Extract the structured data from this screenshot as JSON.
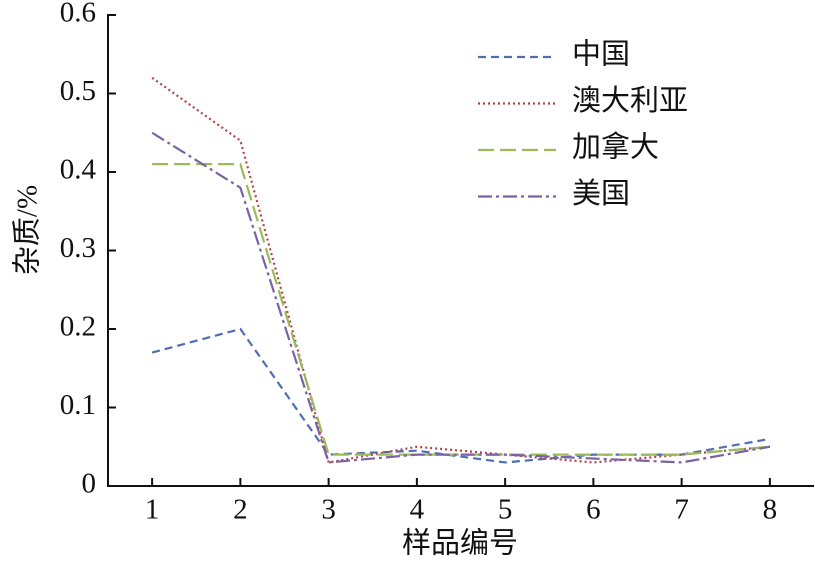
{
  "chart_data": {
    "type": "line",
    "x_label": "样品编号",
    "y_label": "杂质/%",
    "x": [
      1,
      2,
      3,
      4,
      5,
      6,
      7,
      8
    ],
    "xlim": [
      0.5,
      8.5
    ],
    "xticks": [
      1,
      2,
      3,
      4,
      5,
      6,
      7,
      8
    ],
    "ylim": [
      0,
      0.6
    ],
    "yticks": [
      0,
      0.1,
      0.2,
      0.3,
      0.4,
      0.5,
      0.6
    ],
    "grid": false,
    "legend": "upper right",
    "series": [
      {
        "name": "中国",
        "color": "#4f6fb0",
        "linestyle": "dashed",
        "values": [
          0.17,
          0.2,
          0.04,
          0.045,
          0.03,
          0.04,
          0.04,
          0.06
        ]
      },
      {
        "name": "澳大利亚",
        "color": "#b04444",
        "linestyle": "dotted",
        "values": [
          0.52,
          0.44,
          0.03,
          0.05,
          0.04,
          0.03,
          0.04,
          0.05
        ]
      },
      {
        "name": "加拿大",
        "color": "#9bbb59",
        "linestyle": "longdash",
        "values": [
          0.41,
          0.41,
          0.04,
          0.04,
          0.04,
          0.04,
          0.04,
          0.05
        ]
      },
      {
        "name": "美国",
        "color": "#7a62a3",
        "linestyle": "dashdot",
        "values": [
          0.45,
          0.38,
          0.03,
          0.04,
          0.04,
          0.035,
          0.03,
          0.05
        ]
      }
    ]
  }
}
